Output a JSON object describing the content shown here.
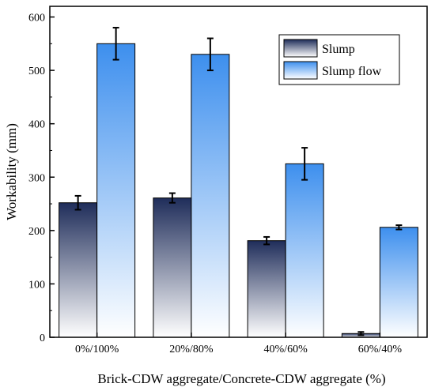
{
  "chart_data": {
    "type": "bar",
    "categories": [
      "0%/100%",
      "20%/80%",
      "40%/60%",
      "60%/40%"
    ],
    "series": [
      {
        "name": "Slump",
        "values": [
          252,
          261,
          181,
          7
        ],
        "errors": [
          13,
          9,
          7,
          3
        ],
        "color_top": "#1f2d5a",
        "color_bottom": "#ffffff"
      },
      {
        "name": "Slump flow",
        "values": [
          550,
          530,
          325,
          206
        ],
        "errors": [
          30,
          30,
          30,
          4
        ],
        "color_top": "#3d8fee",
        "color_bottom": "#ffffff"
      }
    ],
    "xlabel": "Brick-CDW aggregate/Concrete-CDW aggregate (%)",
    "ylabel": "Workability (mm)",
    "ylim": [
      0,
      620
    ],
    "yticks": [
      0,
      100,
      200,
      300,
      400,
      500,
      600
    ],
    "grid": false,
    "legend_position": "top-right"
  }
}
